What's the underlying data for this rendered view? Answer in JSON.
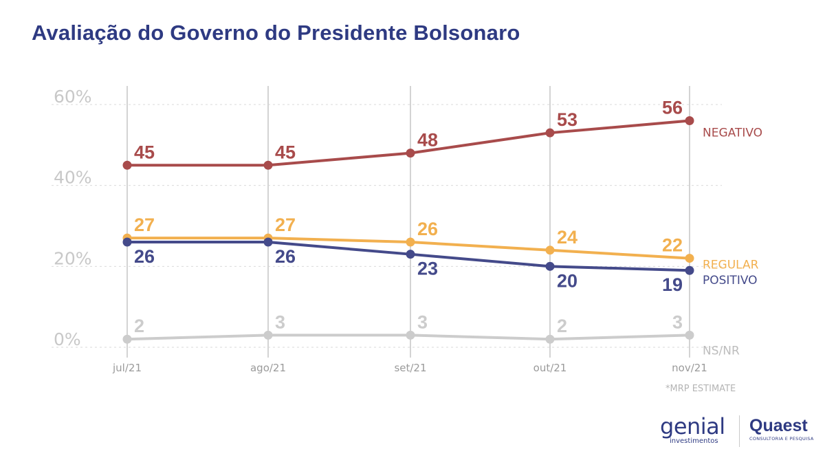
{
  "chart_data": {
    "type": "line",
    "title": "Avaliação do Governo do Presidente Bolsonaro",
    "categories": [
      "jul/21",
      "ago/21",
      "set/21",
      "out/21",
      "nov/21"
    ],
    "y_ticks": [
      "0%",
      "20%",
      "40%",
      "60%"
    ],
    "ylim": [
      0,
      60
    ],
    "grid": true,
    "series": [
      {
        "name": "NEGATIVO",
        "color": "#a84b4b",
        "values": [
          45,
          45,
          48,
          53,
          56
        ],
        "label_position": "above"
      },
      {
        "name": "REGULAR",
        "color": "#f2b04f",
        "values": [
          27,
          27,
          26,
          24,
          22
        ],
        "label_position": "above"
      },
      {
        "name": "POSITIVO",
        "color": "#444a8a",
        "values": [
          26,
          26,
          23,
          20,
          19
        ],
        "label_position": "below"
      },
      {
        "name": "NS/NR",
        "color": "#cccccc",
        "values": [
          2,
          3,
          3,
          2,
          3
        ],
        "label_position": "above"
      }
    ],
    "footnote": "*MRP ESTIMATE"
  },
  "brands": {
    "genial_name": "genial",
    "genial_sub": "investimentos",
    "quaest_name": "Quaest",
    "quaest_sub": "CONSULTORIA E PESQUISA"
  }
}
